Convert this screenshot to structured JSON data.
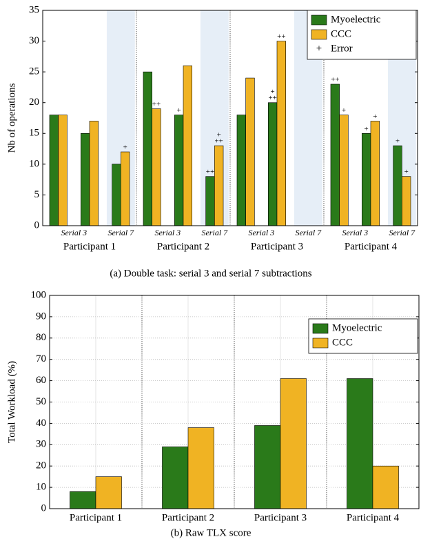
{
  "chart_data": [
    {
      "type": "bar",
      "caption": "(a) Double task: serial 3 and serial 7 subtractions",
      "ylabel": "Nb of operations",
      "groups": [
        "Participant 1",
        "Participant 2",
        "Participant 3",
        "Participant 4"
      ],
      "categories": [
        "Serial 3",
        null,
        "Serial 7",
        "Serial 3",
        null,
        "Serial 7",
        "Serial 3",
        null,
        "Serial 7",
        "Serial 3",
        null,
        "Serial 7"
      ],
      "series": [
        {
          "name": "Myoelectric",
          "color": "#2a7a1a",
          "values": [
            18,
            15,
            10,
            25,
            18,
            8,
            18,
            20,
            null,
            23,
            15,
            13
          ],
          "errors": [
            null,
            null,
            null,
            null,
            [
              "+"
            ],
            [
              "++"
            ],
            null,
            [
              "+",
              "++"
            ],
            null,
            [
              "++"
            ],
            [
              "+"
            ],
            [
              "+"
            ]
          ]
        },
        {
          "name": "CCC",
          "color": "#f0b323",
          "values": [
            18,
            17,
            12,
            19,
            26,
            13,
            24,
            30,
            null,
            18,
            17,
            8
          ],
          "errors": [
            null,
            null,
            [
              "+"
            ],
            [
              "++"
            ],
            null,
            [
              "+",
              "++"
            ],
            null,
            [
              "++"
            ],
            null,
            [
              "+"
            ],
            [
              "+"
            ],
            [
              "+"
            ]
          ]
        }
      ],
      "error_legend": {
        "marker": "+",
        "name": "Error"
      },
      "ylim": [
        0,
        35
      ],
      "yticks": [
        0,
        5,
        10,
        15,
        20,
        25,
        30,
        35
      ],
      "grid": false,
      "legend": "upper right"
    },
    {
      "type": "bar",
      "caption": "(b) Raw TLX score",
      "ylabel": "Total Workload (%)",
      "categories": [
        "Participant 1",
        "Participant 2",
        "Participant 3",
        "Participant 4"
      ],
      "series": [
        {
          "name": "Myoelectric",
          "color": "#2a7a1a",
          "values": [
            8,
            29,
            39,
            61
          ]
        },
        {
          "name": "CCC",
          "color": "#f0b323",
          "values": [
            15,
            38,
            61,
            20
          ]
        }
      ],
      "ylim": [
        0,
        100
      ],
      "yticks": [
        0,
        10,
        20,
        30,
        40,
        50,
        60,
        70,
        80,
        90,
        100
      ],
      "grid": true,
      "legend": "upper right"
    }
  ]
}
